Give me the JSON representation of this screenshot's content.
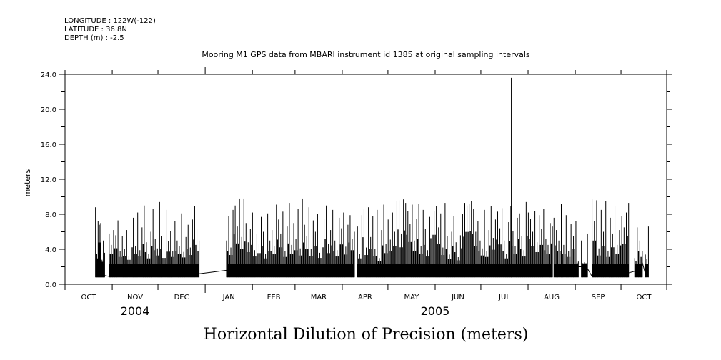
{
  "header": {
    "longitude": "LONGITUDE : 122W(-122)",
    "latitude": "LATITUDE : 36.8N",
    "depth": "DEPTH (m) : -2.5"
  },
  "chart_data": {
    "type": "line",
    "title": "Mooring M1 GPS data from MBARI instrument id 1385 at original sampling intervals",
    "xlabel": "Horizontal Dilution of Precision (meters)",
    "ylabel": "meters",
    "ylim": [
      0,
      24
    ],
    "yticks": [
      "0.0",
      "4.0",
      "8.0",
      "12.0",
      "16.0",
      "20.0",
      "24.0"
    ],
    "ytick_values": [
      0,
      4,
      8,
      12,
      16,
      20,
      24
    ],
    "x_start": "2004-10-01",
    "x_end_day": 395,
    "month_boundaries_day": [
      0,
      31,
      61,
      92,
      123,
      151,
      182,
      212,
      243,
      273,
      304,
      335,
      365,
      395
    ],
    "month_labels": [
      "OCT",
      "NOV",
      "DEC",
      "JAN",
      "FEB",
      "MAR",
      "APR",
      "MAY",
      "JUN",
      "JUL",
      "AUG",
      "SEP",
      "OCT"
    ],
    "year_labels": [
      {
        "label": "2004",
        "day": 46
      },
      {
        "label": "2005",
        "day": 243
      }
    ],
    "grid": false,
    "baseline_min": 0.8,
    "baseline_top": 2.3,
    "segments": [
      {
        "start_day": 20,
        "end_day": 26,
        "peaks": [
          8.8,
          3.5,
          7.2,
          6.8,
          7.0,
          2.8,
          5.0,
          3.6
        ]
      },
      {
        "start_day": 29,
        "end_day": 88,
        "peaks": [
          5.8,
          4.5,
          6.2,
          5.6,
          7.3,
          3.8,
          5.5,
          4.0,
          6.2,
          3.2,
          5.8,
          7.6,
          4.4,
          8.2,
          3.9,
          6.5,
          9.0,
          4.8,
          3.5,
          6.0,
          8.6,
          5.2,
          4.1,
          9.4,
          5.5,
          3.6,
          8.5,
          4.9,
          6.1,
          3.8,
          7.2,
          5.0,
          4.4,
          8.1,
          3.7,
          5.4,
          6.8,
          4.2,
          7.4,
          8.9,
          6.3,
          5.0
        ]
      },
      {
        "start_day": 106,
        "end_day": 190,
        "peaks": [
          5.0,
          7.8,
          4.2,
          8.5,
          9.0,
          6.6,
          9.8,
          5.4,
          9.8,
          7.0,
          4.8,
          6.3,
          8.2,
          3.9,
          5.8,
          4.6,
          7.7,
          6.0,
          3.5,
          8.1,
          5.0,
          6.2,
          4.4,
          9.1,
          7.4,
          5.8,
          8.3,
          3.8,
          6.6,
          9.3,
          4.5,
          7.0,
          5.2,
          8.6,
          4.1,
          9.8,
          6.8,
          5.5,
          8.8,
          4.0,
          7.3,
          6.0,
          8.0,
          3.6,
          5.8,
          7.5,
          9.0,
          4.6,
          6.2,
          8.5,
          5.0,
          3.9,
          7.6,
          6.4,
          8.2,
          4.3,
          6.8,
          7.9,
          5.2,
          6.0
        ]
      },
      {
        "start_day": 192,
        "end_day": 320,
        "peaks": [
          6.6,
          3.5,
          7.9,
          8.6,
          4.2,
          8.8,
          5.4,
          7.8,
          4.0,
          8.5,
          3.0,
          6.2,
          9.1,
          4.6,
          7.4,
          5.1,
          8.2,
          6.0,
          9.5,
          9.6,
          5.8,
          9.7,
          9.3,
          8.4,
          6.9,
          9.1,
          5.0,
          7.5,
          9.2,
          4.4,
          8.5,
          6.3,
          3.9,
          7.7,
          8.6,
          8.4,
          8.9,
          6.5,
          8.1,
          4.2,
          9.3,
          5.5,
          3.4,
          6.0,
          7.8,
          4.8,
          3.1,
          5.6,
          8.0,
          9.3,
          9.0,
          9.2,
          9.5,
          8.6,
          6.0,
          7.2,
          5.0,
          4.1,
          8.5,
          3.8,
          6.2,
          8.9,
          5.3,
          7.4,
          8.3,
          6.4,
          8.7,
          5.0,
          3.5,
          7.1,
          8.9,
          6.1,
          4.4,
          7.6,
          8.1,
          5.5,
          3.9,
          9.4,
          8.2,
          7.5,
          6.0,
          8.4,
          4.8,
          7.9,
          6.3,
          8.6,
          5.2,
          4.5,
          7.0,
          6.6
        ]
      },
      {
        "start_day": 321,
        "end_day": 337,
        "peaks": [
          7.6,
          6.2,
          5.0,
          9.2,
          4.5,
          7.9,
          3.8,
          6.9,
          5.5,
          7.2,
          2.6
        ]
      },
      {
        "start_day": 339,
        "end_day": 343,
        "peaks": [
          5.0,
          2.5,
          5.8
        ]
      },
      {
        "start_day": 346,
        "end_day": 370,
        "peaks": [
          9.8,
          7.2,
          9.6,
          4.1,
          8.5,
          6.0,
          9.5,
          3.8,
          7.6,
          5.8,
          9.0,
          4.5,
          6.2,
          7.8,
          6.5,
          8.2,
          9.3
        ]
      },
      {
        "start_day": 374,
        "end_day": 379,
        "peaks": [
          3.0,
          6.5,
          5.0,
          3.8
        ]
      },
      {
        "start_day": 381,
        "end_day": 383,
        "peaks": [
          3.4,
          6.6
        ]
      }
    ],
    "connectors": [
      {
        "from_day": 26,
        "from": 1.0,
        "to_day": 29,
        "to": 0.9
      },
      {
        "from_day": 88,
        "from": 1.2,
        "to_day": 106,
        "to": 1.6
      },
      {
        "from_day": 337,
        "from": 2.0,
        "to_day": 339,
        "to": 2.0
      },
      {
        "from_day": 343,
        "from": 1.8,
        "to_day": 346,
        "to": 0.9
      },
      {
        "from_day": 370,
        "from": 1.3,
        "to_day": 374,
        "to": 1.5
      },
      {
        "from_day": 379,
        "from": 2.5,
        "to_day": 381,
        "to": 1.2
      }
    ],
    "spikes": [
      {
        "day": 293,
        "value": 23.6
      }
    ]
  }
}
